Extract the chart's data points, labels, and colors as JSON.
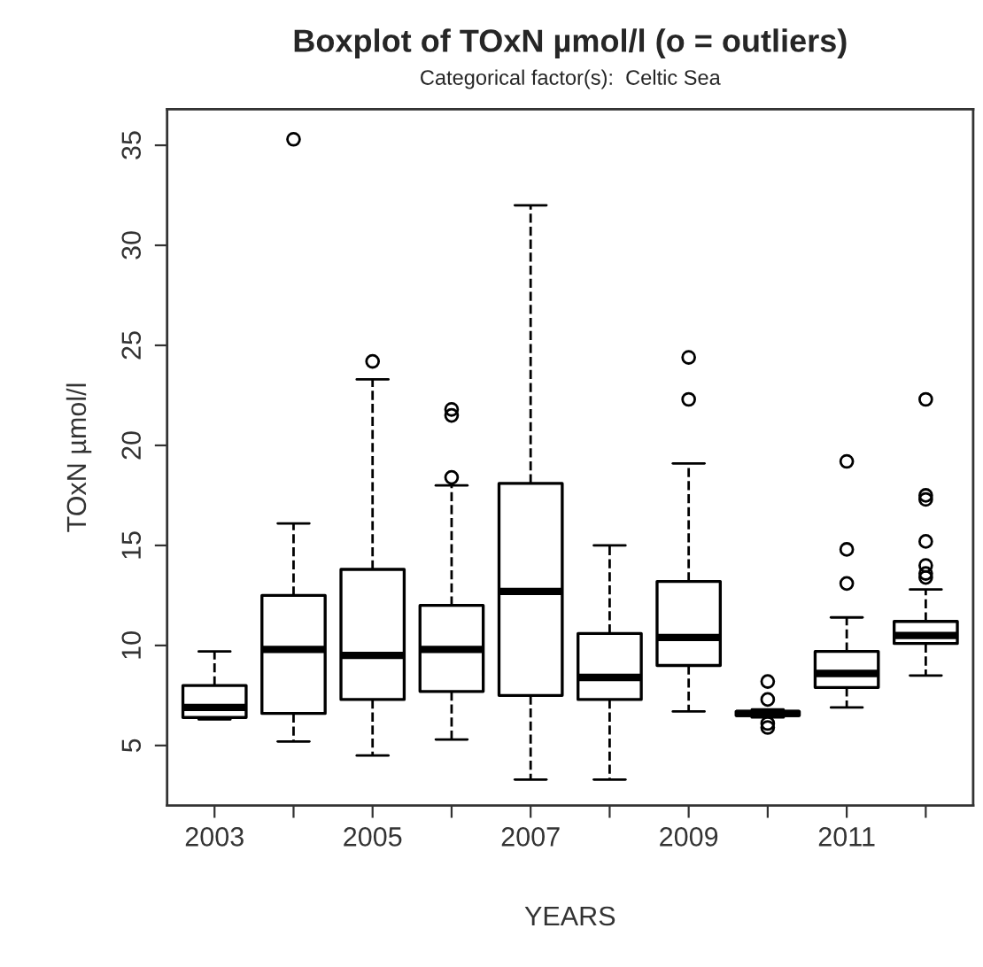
{
  "chart_data": {
    "type": "box",
    "title": "Boxplot of TOxN µmol/l (o = outliers)",
    "subtitle": "Categorical factor(s):  Celtic Sea",
    "xlabel": "YEARS",
    "ylabel": "TOxN µmol/l",
    "color": "#000000",
    "categories": [
      "2003",
      null,
      "2005",
      null,
      "2007",
      null,
      "2009",
      null,
      "2011",
      null
    ],
    "boxes": [
      {
        "low": 6.3,
        "q1": 6.4,
        "median": 6.9,
        "q3": 8.0,
        "high": 9.7
      },
      {
        "low": 5.2,
        "q1": 6.6,
        "median": 9.8,
        "q3": 12.5,
        "high": 16.1,
        "outliers": [
          35.3
        ]
      },
      {
        "low": 4.5,
        "q1": 7.3,
        "median": 9.5,
        "q3": 13.8,
        "high": 23.3,
        "outliers": [
          24.2
        ]
      },
      {
        "low": 5.3,
        "q1": 7.7,
        "median": 9.8,
        "q3": 12.0,
        "high": 18.0,
        "outliers": [
          18.4,
          21.5,
          21.8
        ]
      },
      {
        "low": 3.3,
        "q1": 7.5,
        "median": 12.7,
        "q3": 18.1,
        "high": 32.0
      },
      {
        "low": 3.3,
        "q1": 7.3,
        "median": 8.4,
        "q3": 10.6,
        "high": 15.0
      },
      {
        "low": 6.7,
        "q1": 9.0,
        "median": 10.4,
        "q3": 13.2,
        "high": 19.1,
        "outliers": [
          22.3,
          24.4
        ]
      },
      {
        "low": 6.4,
        "q1": 6.5,
        "median": 6.6,
        "q3": 6.7,
        "high": 6.8,
        "outliers": [
          5.9,
          6.1,
          7.3,
          8.2
        ]
      },
      {
        "low": 6.9,
        "q1": 7.9,
        "median": 8.6,
        "q3": 9.7,
        "high": 11.4,
        "outliers": [
          13.1,
          14.8,
          19.2
        ]
      },
      {
        "low": 8.5,
        "q1": 10.1,
        "median": 10.5,
        "q3": 11.2,
        "high": 12.8,
        "outliers": [
          13.4,
          13.6,
          14.0,
          15.2,
          17.3,
          17.5,
          22.3
        ]
      }
    ],
    "ylim": [
      2.0,
      36.8
    ],
    "yticks": [
      5,
      10,
      15,
      20,
      25,
      30,
      35
    ]
  }
}
